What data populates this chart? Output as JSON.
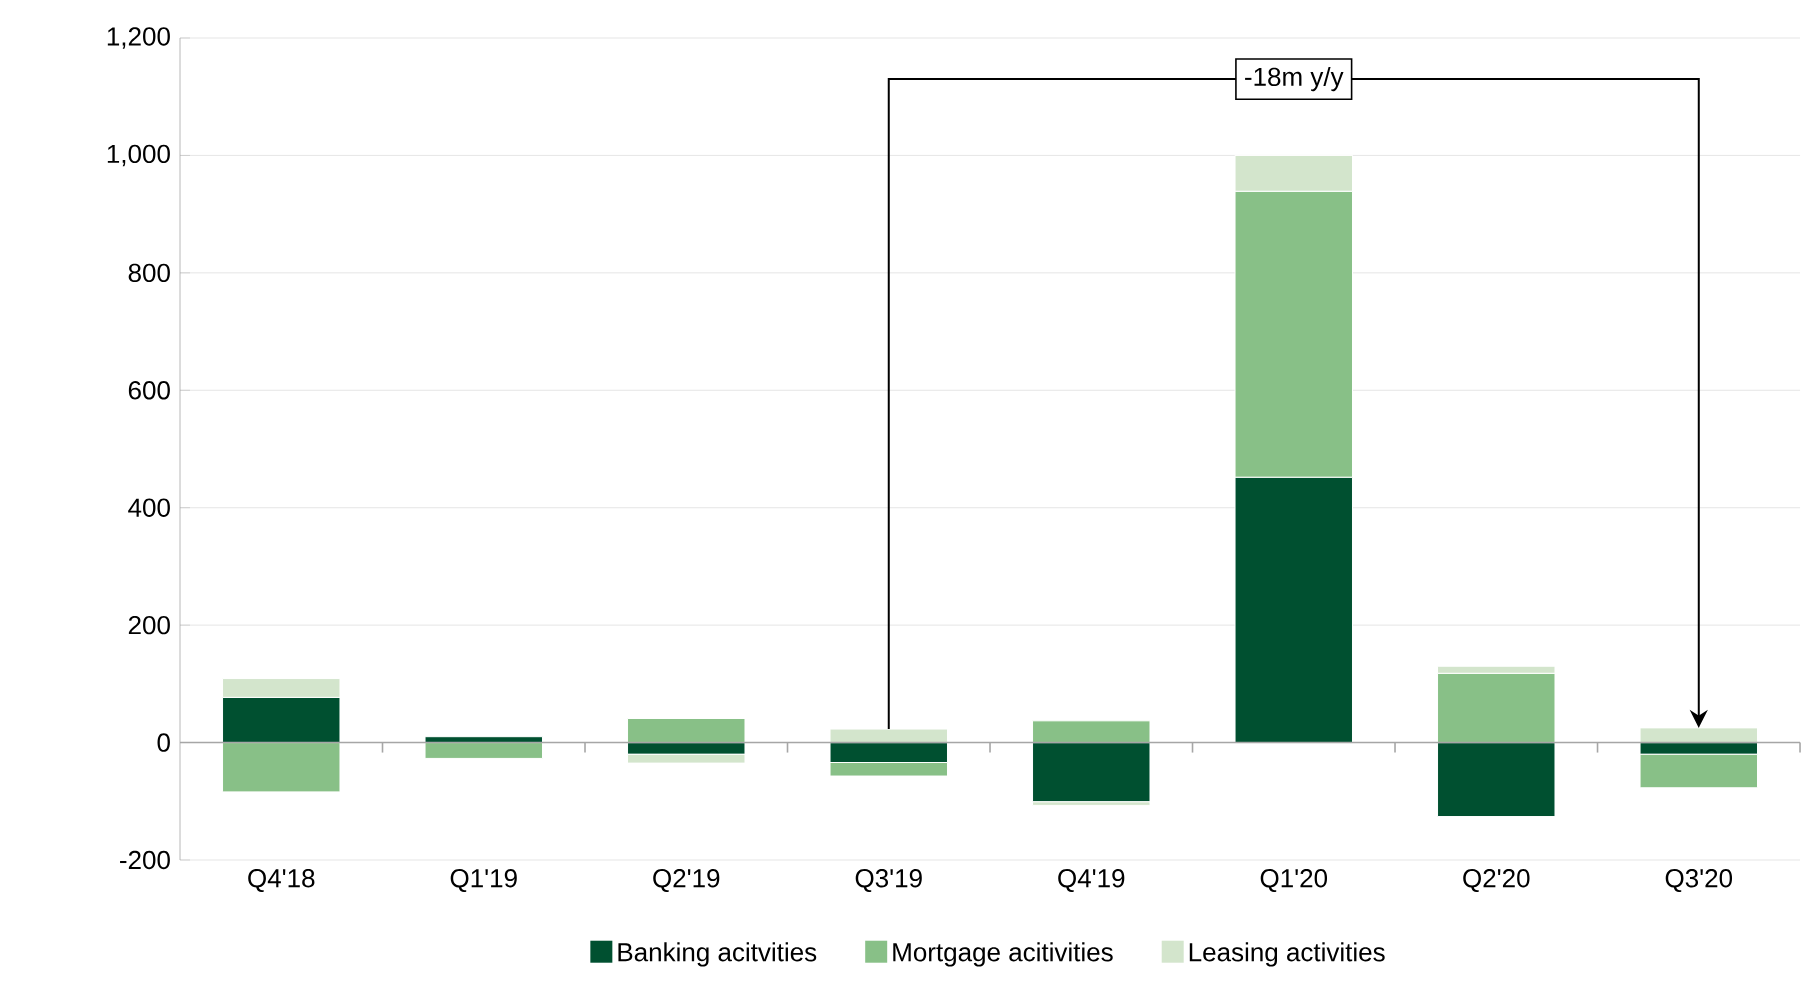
{
  "chart_data": {
    "type": "bar",
    "stacked": true,
    "categories": [
      "Q4'18",
      "Q1'19",
      "Q2'19",
      "Q3'19",
      "Q4'19",
      "Q1'20",
      "Q2'20",
      "Q3'20"
    ],
    "series": [
      {
        "name": "Banking acitvities",
        "color": "#005030",
        "values": [
          77,
          10,
          -20,
          -34,
          -101,
          452,
          -126,
          -20
        ]
      },
      {
        "name": "Mortgage acitivities",
        "color": "#88c087",
        "values": [
          -84,
          -27,
          41,
          -23,
          37,
          487,
          118,
          -57
        ]
      },
      {
        "name": "Leasing activities",
        "color": "#d3e5cc",
        "values": [
          32,
          0,
          -15,
          23,
          -6,
          61,
          12,
          25
        ]
      }
    ],
    "ylim": [
      -200,
      1200
    ],
    "yticks": [
      -200,
      0,
      200,
      400,
      600,
      800,
      {
        "value": 1000,
        "label": "1,000"
      },
      {
        "value": 1200,
        "label": "1,200"
      }
    ],
    "grid": "y",
    "legend": "bottom",
    "annotations": [
      "-18m y/y"
    ]
  }
}
